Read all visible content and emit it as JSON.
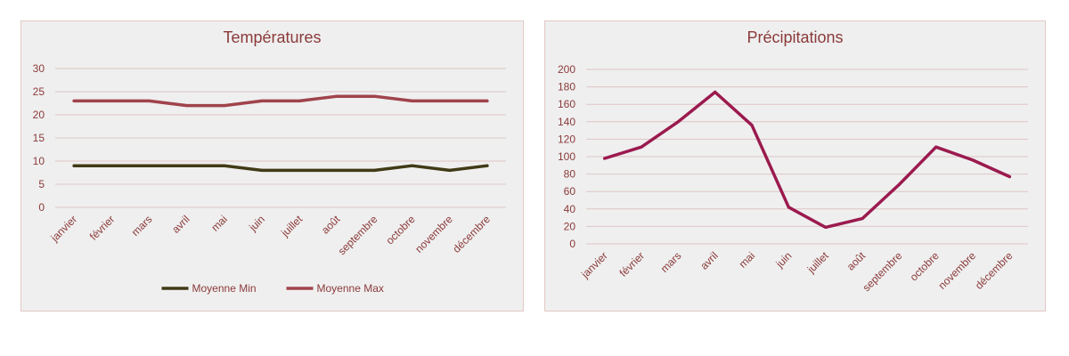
{
  "chart_data": [
    {
      "type": "line",
      "title": "Températures",
      "categories": [
        "janvier",
        "février",
        "mars",
        "avril",
        "mai",
        "juin",
        "juillet",
        "août",
        "septembre",
        "octobre",
        "novembre",
        "décembre"
      ],
      "series": [
        {
          "name": "Moyenne Min",
          "color": "#403a16",
          "values": [
            9,
            9,
            9,
            9,
            9,
            8,
            8,
            8,
            8,
            9,
            8,
            9
          ]
        },
        {
          "name": "Moyenne Max",
          "color": "#a0434b",
          "values": [
            23,
            23,
            23,
            22,
            22,
            23,
            23,
            24,
            24,
            23,
            23,
            23
          ]
        }
      ],
      "ylim": [
        0,
        30
      ],
      "yticks": [
        0,
        5,
        10,
        15,
        20,
        25,
        30
      ],
      "grid": true,
      "legend": "bottom"
    },
    {
      "type": "line",
      "title": "Précipitations",
      "categories": [
        "janvier",
        "février",
        "mars",
        "avril",
        "mai",
        "juin",
        "juillet",
        "août",
        "septembre",
        "octobre",
        "novembre",
        "décembre"
      ],
      "series": [
        {
          "color": "#9b1a4e",
          "values": [
            98,
            111,
            140,
            174,
            136,
            42,
            19,
            29,
            68,
            111,
            96,
            77
          ]
        }
      ],
      "ylim": [
        0,
        200
      ],
      "yticks": [
        0,
        20,
        40,
        60,
        80,
        100,
        120,
        140,
        160,
        180,
        200
      ],
      "grid": true,
      "legend": "none"
    }
  ]
}
